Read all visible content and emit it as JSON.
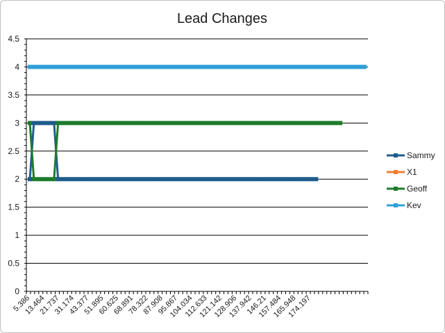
{
  "chart_data": {
    "type": "line",
    "title": "Lead Changes",
    "xlabel": "",
    "ylabel": "",
    "ylim": [
      0,
      4.5
    ],
    "y_ticks": [
      0,
      0.5,
      1,
      1.5,
      2,
      2.5,
      3,
      3.5,
      4,
      4.5
    ],
    "y_tick_labels": [
      "0",
      "0.5",
      "1",
      "1.5",
      "2",
      "2.5",
      "3",
      "3.5",
      "4",
      "4.5"
    ],
    "x_tick_labels": [
      "5.386",
      "13.464",
      "21.737",
      "31.174",
      "43.377",
      "51.895",
      "60.625",
      "68.891",
      "78.322",
      "87.908",
      "95.867",
      "104.034",
      "112.633",
      "121.142",
      "128.906",
      "137.942",
      "146.21",
      "157.484",
      "165.948",
      "174.197"
    ],
    "grid": true,
    "legend_position": "right",
    "series": [
      {
        "name": "Sammy",
        "color": "#1f5c8b",
        "values": [
          2,
          3,
          3,
          3,
          3,
          3,
          3,
          2,
          2,
          2,
          2,
          2,
          2,
          2,
          2,
          2,
          2,
          2,
          2,
          2,
          2,
          2,
          2,
          2,
          2,
          2,
          2,
          2,
          2,
          2,
          2,
          2,
          2,
          2,
          2,
          2,
          2,
          2,
          2,
          2,
          2,
          2,
          2,
          2,
          2,
          2,
          2,
          2,
          2,
          2,
          2,
          2,
          2,
          2,
          2,
          2,
          2,
          2,
          2,
          2,
          2,
          2,
          2,
          2,
          2,
          2,
          2,
          2,
          2,
          2,
          2,
          2
        ]
      },
      {
        "name": "X1",
        "color": "#ed7d31",
        "values": []
      },
      {
        "name": "Geoff",
        "color": "#1e7b2c",
        "values": [
          3,
          2,
          2,
          2,
          2,
          2,
          2,
          3,
          3,
          3,
          3,
          3,
          3,
          3,
          3,
          3,
          3,
          3,
          3,
          3,
          3,
          3,
          3,
          3,
          3,
          3,
          3,
          3,
          3,
          3,
          3,
          3,
          3,
          3,
          3,
          3,
          3,
          3,
          3,
          3,
          3,
          3,
          3,
          3,
          3,
          3,
          3,
          3,
          3,
          3,
          3,
          3,
          3,
          3,
          3,
          3,
          3,
          3,
          3,
          3,
          3,
          3,
          3,
          3,
          3,
          3,
          3,
          3,
          3,
          3,
          3,
          3,
          3,
          3,
          3,
          3,
          3,
          3
        ]
      },
      {
        "name": "Kev",
        "color": "#2e9fd8",
        "values": [
          4,
          4,
          4,
          4,
          4,
          4,
          4,
          4,
          4,
          4,
          4,
          4,
          4,
          4,
          4,
          4,
          4,
          4,
          4,
          4,
          4,
          4,
          4,
          4,
          4,
          4,
          4,
          4,
          4,
          4,
          4,
          4,
          4,
          4,
          4,
          4,
          4,
          4,
          4,
          4,
          4,
          4,
          4,
          4,
          4,
          4,
          4,
          4,
          4,
          4,
          4,
          4,
          4,
          4,
          4,
          4,
          4,
          4,
          4,
          4,
          4,
          4,
          4,
          4,
          4,
          4,
          4,
          4,
          4,
          4,
          4,
          4,
          4,
          4,
          4,
          4,
          4,
          4,
          4,
          4,
          4,
          4,
          4,
          4
        ]
      }
    ]
  }
}
